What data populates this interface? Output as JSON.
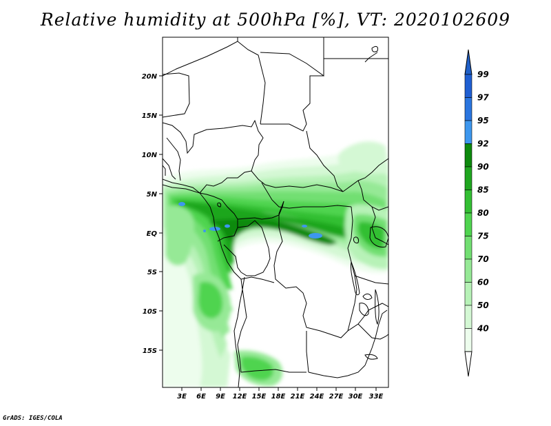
{
  "title": "Relative humidity at 500hPa [%], VT: 2020102609",
  "credit": "GrADS: IGES/COLA",
  "map": {
    "lat_labels": [
      "20N",
      "15N",
      "10N",
      "5N",
      "EQ",
      "5S",
      "10S",
      "15S"
    ],
    "lon_labels": [
      "3E",
      "6E",
      "9E",
      "12E",
      "15E",
      "18E",
      "21E",
      "24E",
      "27E",
      "30E",
      "33E"
    ]
  },
  "legend": {
    "levels": [
      {
        "label": "99",
        "color": "#1f5fd2"
      },
      {
        "label": "97",
        "color": "#2a75df"
      },
      {
        "label": "95",
        "color": "#3d97ee"
      },
      {
        "label": "92",
        "color": "#0d8a0d"
      },
      {
        "label": "90",
        "color": "#1fa61f"
      },
      {
        "label": "85",
        "color": "#33bf33"
      },
      {
        "label": "80",
        "color": "#4fd44f"
      },
      {
        "label": "75",
        "color": "#72df72"
      },
      {
        "label": "70",
        "color": "#96e996"
      },
      {
        "label": "60",
        "color": "#b7f2b7"
      },
      {
        "label": "50",
        "color": "#d4f8d4"
      },
      {
        "label": "40",
        "color": "#edfded"
      }
    ],
    "top_color": "#2060c8"
  }
}
